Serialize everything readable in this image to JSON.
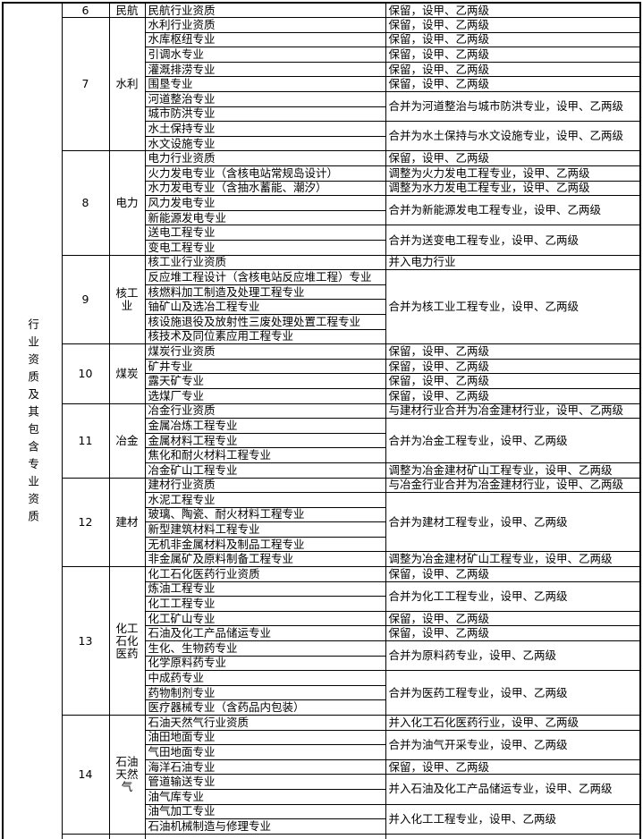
{
  "page": {
    "background_color": "#fdfdfd",
    "table_background_color": "#ffffff",
    "border_color": "#000000",
    "text_color": "#000000"
  },
  "table": {
    "row_group_header": "行业资质及其包含专业资质",
    "sections": [
      {
        "number": "6",
        "industry": "民航",
        "groups": [
          {
            "items": [
              "民航行业资质"
            ],
            "disposition": "保留，设甲、乙两级"
          }
        ]
      },
      {
        "number": "7",
        "industry": "水利",
        "groups": [
          {
            "items": [
              "水利行业资质"
            ],
            "disposition": "保留，设甲、乙两级"
          },
          {
            "items": [
              "水库枢纽专业"
            ],
            "disposition": "保留，设甲、乙两级"
          },
          {
            "items": [
              "引调水专业"
            ],
            "disposition": "保留，设甲、乙两级"
          },
          {
            "items": [
              "灌溉排涝专业"
            ],
            "disposition": "保留，设甲、乙两级"
          },
          {
            "items": [
              "围垦专业"
            ],
            "disposition": "保留，设甲、乙两级"
          },
          {
            "items": [
              "河道整治专业",
              "城市防洪专业"
            ],
            "disposition": "合并为河道整治与城市防洪专业，设甲、乙两级"
          },
          {
            "items": [
              "水土保持专业",
              "水文设施专业"
            ],
            "disposition": "合并为水土保持与水文设施专业，设甲、乙两级"
          }
        ]
      },
      {
        "number": "8",
        "industry": "电力",
        "groups": [
          {
            "items": [
              "电力行业资质"
            ],
            "disposition": "保留，设甲、乙两级"
          },
          {
            "items": [
              "火力发电专业（含核电站常规岛设计）"
            ],
            "disposition": "调整为火力发电工程专业，设甲、乙两级"
          },
          {
            "items": [
              "水力发电专业（含抽水蓄能、潮汐）"
            ],
            "disposition": "调整为水力发电工程专业，设甲、乙两级"
          },
          {
            "items": [
              "风力发电专业",
              "新能源发电专业"
            ],
            "disposition": "合并为新能源发电工程专业，设甲、乙两级"
          },
          {
            "items": [
              "送电工程专业",
              "变电工程专业"
            ],
            "disposition": "合并为送变电工程专业，设甲、乙两级"
          }
        ]
      },
      {
        "number": "9",
        "industry": "核工业",
        "groups": [
          {
            "items": [
              "核工业行业资质"
            ],
            "disposition": "并入电力行业"
          },
          {
            "items": [
              "反应堆工程设计（含核电站反应堆工程）专业",
              "核燃料加工制造及处理工程专业",
              "铀矿山及选冶工程专业",
              "核设施退役及放射性三废处理处置工程专业",
              "核技术及同位素应用工程专业"
            ],
            "disposition": "合并为核工业工程专业，设甲、乙两级"
          }
        ]
      },
      {
        "number": "10",
        "industry": "煤炭",
        "groups": [
          {
            "items": [
              "煤炭行业资质"
            ],
            "disposition": "保留，设甲、乙两级"
          },
          {
            "items": [
              "矿井专业"
            ],
            "disposition": "保留，设甲、乙两级"
          },
          {
            "items": [
              "露天矿专业"
            ],
            "disposition": "保留，设甲、乙两级"
          },
          {
            "items": [
              "选煤厂专业"
            ],
            "disposition": "保留，设甲、乙两级"
          }
        ]
      },
      {
        "number": "11",
        "industry": "冶金",
        "groups": [
          {
            "items": [
              "冶金行业资质"
            ],
            "disposition": "与建材行业合并为冶金建材行业，设甲、乙两级"
          },
          {
            "items": [
              "金属冶炼工程专业",
              "金属材料工程专业",
              "焦化和耐火材料工程专业"
            ],
            "disposition": "合并为冶金工程专业，设甲、乙两级"
          },
          {
            "items": [
              "冶金矿山工程专业"
            ],
            "disposition": "调整为冶金建材矿山工程专业，设甲、乙两级"
          }
        ]
      },
      {
        "number": "12",
        "industry": "建材",
        "groups": [
          {
            "items": [
              "建材行业资质"
            ],
            "disposition": "与冶金行业合并为冶金建材行业，设甲、乙两级"
          },
          {
            "items": [
              "水泥工程专业",
              "玻璃、陶瓷、耐火材料工程专业",
              "新型建筑材料工程专业",
              "无机非金属材料及制品工程专业"
            ],
            "disposition": "合并为建材工程专业，设甲、乙两级"
          },
          {
            "items": [
              "非金属矿及原料制备工程专业"
            ],
            "disposition": "调整为冶金建材矿山工程专业，设甲、乙两级"
          }
        ]
      },
      {
        "number": "13",
        "industry": "化工石化医药",
        "groups": [
          {
            "items": [
              "化工石化医药行业资质"
            ],
            "disposition": "保留，设甲、乙两级"
          },
          {
            "items": [
              "炼油工程专业",
              "化工工程专业"
            ],
            "disposition": "合并为化工工程专业，设甲、乙两级"
          },
          {
            "items": [
              "化工矿山专业"
            ],
            "disposition": "保留，设甲、乙两级"
          },
          {
            "items": [
              "石油及化工产品储运专业"
            ],
            "disposition": "保留，设甲、乙两级"
          },
          {
            "items": [
              "生化、生物药专业",
              "化学原料药专业"
            ],
            "disposition": "合并为原料药专业，设甲、乙两级"
          },
          {
            "items": [
              "中成药专业",
              "药物制剂专业",
              "医疗器械专业（含药品内包装）"
            ],
            "disposition": "合并为医药工程专业，设甲、乙两级"
          }
        ]
      },
      {
        "number": "14",
        "industry": "石油天然气",
        "groups": [
          {
            "items": [
              "石油天然气行业资质"
            ],
            "disposition": "并入化工石化医药行业，设甲、乙两级"
          },
          {
            "items": [
              "油田地面专业",
              "气田地面专业"
            ],
            "disposition": "合并为油气开采专业，设甲、乙两级"
          },
          {
            "items": [
              "海洋石油专业"
            ],
            "disposition": "保留，设甲、乙两级"
          },
          {
            "items": [
              "管道输送专业",
              "油气库专业"
            ],
            "disposition": "并入石油及化工产品储运专业，设甲、乙两级"
          },
          {
            "items": [
              "油气加工专业",
              "石油机械制造与修理专业"
            ],
            "disposition": "并入化工工程专业，设甲、乙两级"
          }
        ]
      }
    ]
  }
}
